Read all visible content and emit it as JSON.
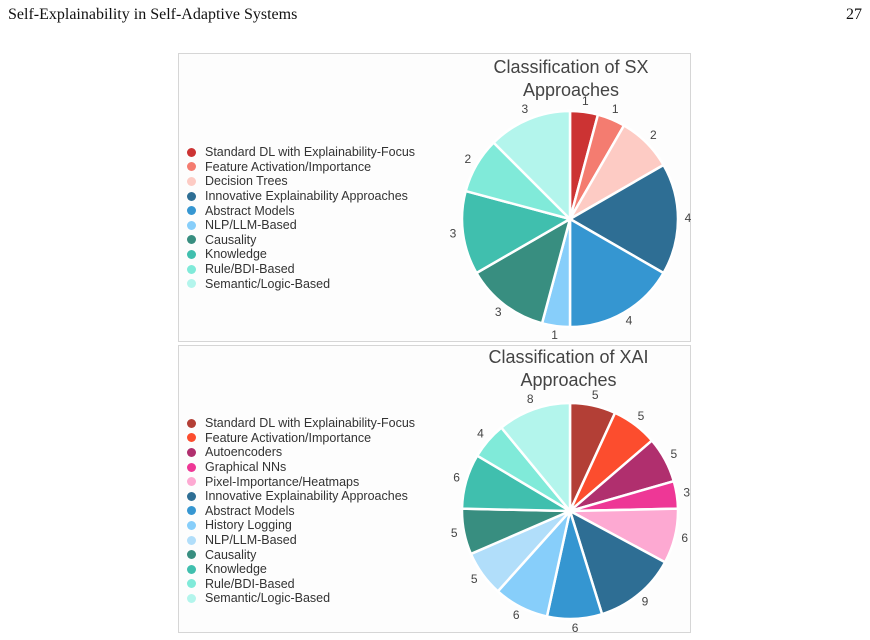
{
  "header": {
    "running_title": "Self-Explainability in Self-Adaptive Systems",
    "page_number": "27"
  },
  "chart_data": [
    {
      "type": "pie",
      "title": "Classification of SX\nApproaches",
      "legend_position": "left",
      "categories": [
        "Standard DL with Explainability-Focus",
        "Feature Activation/Importance",
        "Decision Trees",
        "Innovative Explainability Approaches",
        "Abstract Models",
        "NLP/LLM-Based",
        "Causality",
        "Knowledge",
        "Rule/BDI-Based",
        "Semantic/Logic-Based"
      ],
      "values": [
        1,
        1,
        2,
        4,
        4,
        1,
        3,
        3,
        2,
        3
      ],
      "colors": [
        "#cc3333",
        "#f47c70",
        "#fdcbc4",
        "#2e6e94",
        "#3596d1",
        "#87cefa",
        "#388e80",
        "#40bfae",
        "#80ead9",
        "#b3f5ec"
      ]
    },
    {
      "type": "pie",
      "title": "Classification of XAI\nApproaches",
      "legend_position": "left",
      "categories": [
        "Standard DL with Explainability-Focus",
        "Feature Activation/Importance",
        "Autoencoders",
        "Graphical NNs",
        "Pixel-Importance/Heatmaps",
        "Innovative Explainability Approaches",
        "Abstract Models",
        "History Logging",
        "NLP/LLM-Based",
        "Causality",
        "Knowledge",
        "Rule/BDI-Based",
        "Semantic/Logic-Based"
      ],
      "values": [
        5,
        5,
        5,
        3,
        6,
        9,
        6,
        6,
        5,
        5,
        6,
        4,
        8
      ],
      "colors": [
        "#b33f36",
        "#fc4d2e",
        "#b02f6e",
        "#ee3796",
        "#fda9d2",
        "#2e6e94",
        "#3596d1",
        "#87cefa",
        "#b1defa",
        "#388e80",
        "#40bfae",
        "#80ead9",
        "#b3f5ec"
      ]
    }
  ]
}
